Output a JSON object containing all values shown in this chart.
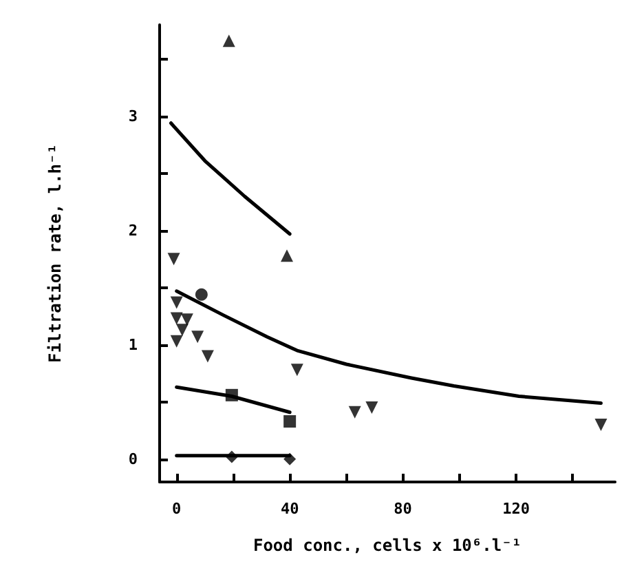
{
  "chart_data": {
    "type": "scatter",
    "xlabel": "Food conc., cells x 10⁶.l⁻¹",
    "ylabel": "Filtration rate, l.h⁻¹",
    "xlim": [
      -6,
      155
    ],
    "ylim": [
      -0.2,
      3.8
    ],
    "xticks": [
      0,
      {
        "value": 20,
        "label": null
      },
      40,
      {
        "value": 60,
        "label": null
      },
      80,
      {
        "value": 100,
        "label": null
      },
      120,
      {
        "value": 140,
        "label": null
      }
    ],
    "yticks": [
      0,
      {
        "value": 0.5,
        "label": null
      },
      1,
      {
        "value": 1.5,
        "label": null
      },
      2,
      {
        "value": 2.5,
        "label": null
      },
      3,
      {
        "value": 3.5,
        "label": null
      }
    ],
    "grid": false,
    "series": [
      {
        "marker": "triangle",
        "color": "#000000",
        "x": [
          18.5,
          39
        ],
        "values": [
          3.66,
          1.78
        ]
      },
      {
        "marker": "triangle-down",
        "color": "#000000",
        "x": [
          -1,
          0,
          0,
          3.7,
          2,
          0,
          7.4,
          11,
          42.6,
          63,
          69,
          150
        ],
        "values": [
          1.75,
          1.37,
          1.23,
          1.22,
          1.13,
          1.03,
          1.07,
          0.9,
          0.78,
          0.41,
          0.45,
          0.3
        ]
      },
      {
        "marker": "circle",
        "color": "#000000",
        "x": [
          8.8
        ],
        "values": [
          1.44
        ]
      },
      {
        "marker": "square",
        "color": "#000000",
        "x": [
          19.5,
          40
        ],
        "values": [
          0.56,
          0.33
        ]
      },
      {
        "marker": "diamond",
        "color": "#000000",
        "x": [
          19.5,
          40
        ],
        "values": [
          0.02,
          0
        ]
      },
      {
        "type": "line",
        "marker": "none",
        "line_style": "solid",
        "color": "#000000",
        "x": [
          -2,
          10,
          24,
          40
        ],
        "values": [
          2.94,
          2.61,
          2.3,
          1.97
        ]
      },
      {
        "type": "line",
        "marker": "none",
        "line_style": "solid",
        "color": "#000000",
        "x": [
          0,
          16.5,
          32,
          42.6,
          60,
          83,
          98,
          121,
          150
        ],
        "values": [
          1.47,
          1.26,
          1.07,
          0.95,
          0.83,
          0.71,
          0.64,
          0.55,
          0.49
        ]
      },
      {
        "type": "line",
        "marker": "none",
        "line_style": "solid",
        "color": "#000000",
        "x": [
          0,
          19.5,
          40
        ],
        "values": [
          0.63,
          0.55,
          0.41
        ]
      },
      {
        "type": "line",
        "marker": "none",
        "line_style": "solid",
        "color": "#000000",
        "x": [
          0,
          40
        ],
        "values": [
          0.03,
          0.03
        ]
      }
    ]
  }
}
